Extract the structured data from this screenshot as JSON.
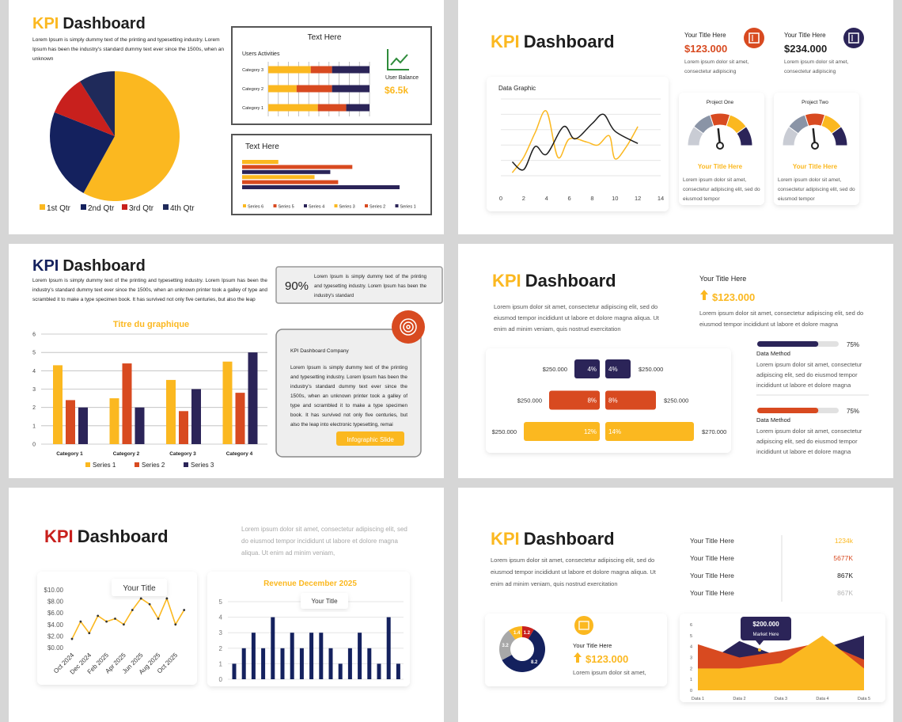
{
  "slides": [
    {
      "title_accent": "KPI",
      "title_rest": "Dashboard",
      "title_color": "#fbb820",
      "description": "Lorem Ipsum is simply dummy text of the printing and typesetting industry. Lorem Ipsum has been the industry's standard dummy text ever since the 1500s, when an unknown",
      "pie": {
        "type": "pie",
        "categories": [
          "1st Qtr",
          "2nd Qtr",
          "3rd Qtr",
          "4th Qtr"
        ],
        "values": [
          58,
          23,
          10,
          9
        ],
        "colors": [
          "#fbb820",
          "#14215e",
          "#c8201d",
          "#1f2a5a"
        ]
      },
      "activities": {
        "type": "bar",
        "orientation": "horizontal",
        "stacked": true,
        "title": "Text Here",
        "subtitle": "Users Activities",
        "categories": [
          "Category 3",
          "Category 2",
          "Category 1"
        ],
        "series": [
          {
            "color": "#fbb820",
            "values": [
              42,
              28,
              49
            ]
          },
          {
            "color": "#d84a20",
            "values": [
              21,
              35,
              28
            ]
          },
          {
            "color": "#2b2458",
            "values": [
              37,
              37,
              23
            ]
          }
        ]
      },
      "balance": {
        "label": "User Balance",
        "value": "$6.5k"
      },
      "series_bars": {
        "type": "bar",
        "orientation": "horizontal",
        "title": "Text Here",
        "series": [
          {
            "name": "Series 6",
            "color": "#fbb820",
            "value": 23
          },
          {
            "name": "Series 5",
            "color": "#d84a20",
            "value": 70
          },
          {
            "name": "Series 4",
            "color": "#2b2458",
            "value": 56
          },
          {
            "name": "Series 3",
            "color": "#fbb820",
            "value": 46
          },
          {
            "name": "Series 2",
            "color": "#d84a20",
            "value": 61
          },
          {
            "name": "Series 1",
            "color": "#2b2458",
            "value": 100
          }
        ]
      }
    },
    {
      "title_accent": "KPI",
      "title_rest": "Dashboard",
      "title_color": "#fbb820",
      "cards": [
        {
          "title": "Your Title Here",
          "value": "$123.000",
          "color": "#d84a20",
          "icon_color": "#d84a20",
          "description": "Lorem ipsum dolor sit amet, consectetur adipiscing"
        },
        {
          "title": "Your Title Here",
          "value": "$234.000",
          "color": "#1e1e1e",
          "icon_color": "#2b2458",
          "description": "Lorem ipsum dolor sit amet, consectetur adipiscing"
        }
      ],
      "line_chart": {
        "type": "line",
        "title": "Data Graphic",
        "xlim": [
          0,
          14
        ],
        "xticks": [
          0,
          2,
          4,
          6,
          8,
          10,
          12,
          14
        ],
        "ylim": [
          0,
          5
        ],
        "series": [
          {
            "color": "#fbb820",
            "x": [
              1,
              2,
              3,
              4,
              5,
              6,
              7.5,
              8.5,
              9.5,
              10,
              11,
              12
            ],
            "values": [
              0.2,
              1.2,
              2.8,
              4.2,
              1.2,
              2.4,
              2.2,
              2.0,
              2.6,
              1.1,
              1.9,
              3.2
            ]
          },
          {
            "color": "#1e1e1e",
            "x": [
              1,
              2,
              3,
              4,
              5.5,
              6.5,
              8,
              9,
              10,
              12
            ],
            "values": [
              0.9,
              0.4,
              1.9,
              1.4,
              3.2,
              2.4,
              3.4,
              4.0,
              2.9,
              2.1
            ]
          }
        ]
      },
      "gauges": [
        {
          "title": "Project One",
          "subtitle": "Your Title Here",
          "description": "Lorem ipsum dolor sit amet, consectetur adipiscing elit, sed do eiusmod tempor"
        },
        {
          "title": "Project Two",
          "subtitle": "Your Title Here",
          "description": "Lorem ipsum dolor sit amet, consectetur adipiscing elit, sed do eiusmod tempor"
        }
      ]
    },
    {
      "title_accent": "KPI",
      "title_rest": "Dashboard",
      "title_color": "#14215e",
      "description": "Lorem Ipsum is simply dummy text of the printing and typesetting industry. Lorem Ipsum has been the industry's standard dummy text ever since the 1500s, when an unknown printer took a galley of type and scrambled it to make a type specimen book. It has survived not only five centuries, but also the leap",
      "highlight": {
        "value": "90%",
        "text": "Lorem Ipsum is simply dummy text of the printing and typesetting industry. Lorem Ipsum has been the industry's standard"
      },
      "bar_chart": {
        "type": "bar",
        "title": "Titre du graphique",
        "categories": [
          "Category 1",
          "Category 2",
          "Category 3",
          "Category 4"
        ],
        "ylim": [
          0,
          6
        ],
        "yticks": [
          0,
          1,
          2,
          3,
          4,
          5,
          6
        ],
        "grid": true,
        "series": [
          {
            "name": "Series 1",
            "color": "#fbb820",
            "values": [
              4.3,
              2.5,
              3.5,
              4.5
            ]
          },
          {
            "name": "Series 2",
            "color": "#d84a20",
            "values": [
              2.4,
              4.4,
              1.8,
              2.8
            ]
          },
          {
            "name": "Series 3",
            "color": "#2b2458",
            "values": [
              2,
              2,
              3,
              5
            ]
          }
        ]
      },
      "company": {
        "title": "KPI Dashboard Company",
        "text": "Lorem Ipsum is simply dummy text of the printing and typesetting industry. Lorem Ipsum has been the industry's standard dummy text ever since the 1500s, when an unknown printer took a galley of type and scrambled it to make a type specimen book. It has survived not only five centuries, but also the leap into electronic typesetting, remai",
        "button": "Infographic Slide"
      }
    },
    {
      "title_accent": "KPI",
      "title_rest": "Dashboard",
      "title_color": "#fbb820",
      "description": "Lorem ipsum dolor sit amet, consectetur adipiscing elit, sed do eiusmod tempor incididunt ut labore et dolore magna aliqua. Ut enim ad minim veniam, quis nostrud exercitation",
      "kpi": {
        "title": "Your Title Here",
        "value": "$123.000",
        "description": "Lorem ipsum dolor sit amet, consectetur adipiscing elit, sed do eiusmod tempor incididunt ut labore et dolore magna"
      },
      "butterfly": {
        "type": "bar",
        "rows": [
          {
            "left_label": "$250.000",
            "left_value": 4,
            "left_value_label": "4%",
            "right_value": 4,
            "right_value_label": "4%",
            "right_label": "$250.000",
            "color": "#2b2458"
          },
          {
            "left_label": "$250.000",
            "left_value": 8,
            "left_value_label": "8%",
            "right_value": 8,
            "right_value_label": "8%",
            "right_label": "$250.000",
            "color": "#d84a20"
          },
          {
            "left_label": "$250.000",
            "left_value": 12,
            "left_value_label": "12%",
            "right_value": 14,
            "right_value_label": "14%",
            "right_label": "$270.000",
            "color": "#fbb820"
          }
        ]
      },
      "progress": [
        {
          "value": 75,
          "value_label": "75%",
          "color": "#2b2458",
          "label": "Data Method",
          "description": "Lorem ipsum dolor sit amet, consectetur adipiscing elit, sed do eiusmod tempor incididunt ut labore et dolore magna"
        },
        {
          "value": 75,
          "value_label": "75%",
          "color": "#d84a20",
          "label": "Data Method",
          "description": "Lorem ipsum dolor sit amet, consectetur adipiscing elit, sed do eiusmod tempor incididunt ut labore et dolore magna"
        }
      ]
    },
    {
      "title_accent": "KPI",
      "title_rest": "Dashboard",
      "title_color": "#c8201d",
      "description": "Lorem ipsum dolor sit amet, consectetur adipiscing elit, sed do eiusmod tempor incididunt ut labore et dolore magna aliqua. Ut enim ad minim veniam,",
      "line_chart": {
        "type": "line",
        "color": "#fbb820",
        "tooltip": "Your Title",
        "categories": [
          "Oct 2024",
          null,
          "Dec 2024",
          null,
          "Feb 2025",
          null,
          "Apr 2025",
          null,
          "Jun 2025",
          null,
          "Aug 2025",
          null,
          "Oct 2025",
          null
        ],
        "values": [
          1.5,
          4.5,
          2.5,
          5.5,
          4.5,
          5.0,
          4.0,
          6.5,
          8.5,
          7.5,
          5.0,
          8.5,
          4.0,
          6.5
        ],
        "ylim": [
          0,
          10
        ],
        "yticks": [
          {
            "value": 0,
            "label": "$0.00"
          },
          {
            "value": 2,
            "label": "$2.00"
          },
          {
            "value": 4,
            "label": "$4.00"
          },
          {
            "value": 6,
            "label": "$6.00"
          },
          {
            "value": 8,
            "label": "$8.00"
          },
          {
            "value": 10,
            "label": "$10.00"
          }
        ]
      },
      "bar_chart": {
        "type": "bar",
        "title": "Revenue December 2025",
        "tooltip": "Your Title",
        "color": "#14215e",
        "grid": true,
        "values": [
          1,
          2,
          3,
          2,
          4,
          2,
          3,
          2,
          3,
          3,
          2,
          1,
          2,
          3,
          2,
          1,
          4,
          1
        ],
        "ylim": [
          0,
          5
        ],
        "yticks": [
          0,
          1,
          2,
          3,
          4,
          5
        ]
      }
    },
    {
      "title_accent": "KPI",
      "title_rest": "Dashboard",
      "title_color": "#fbb820",
      "description": "Lorem ipsum dolor sit amet, consectetur adipiscing elit, sed do eiusmod tempor incididunt ut labore et dolore magna aliqua. Ut enim ad minim veniam, quis nostrud exercitation",
      "table": [
        {
          "label": "Your Title Here",
          "value": "1234k",
          "color": "#fbb820"
        },
        {
          "label": "Your Title Here",
          "value": "5677K",
          "color": "#d84a20"
        },
        {
          "label": "Your Title Here",
          "value": "867K",
          "color": "#1e1e1e"
        },
        {
          "label": "Your Title Here",
          "value": "867K",
          "color": "#b5b5b5"
        }
      ],
      "donut": {
        "type": "pie",
        "donut": true,
        "values": [
          1.4,
          1.2,
          8.2,
          3.2
        ],
        "colors": [
          "#fbb820",
          "#c8201d",
          "#14215e",
          "#a8a8a8"
        ]
      },
      "kpi": {
        "title": "Your Title Here",
        "value": "$123.000",
        "description": "Lorem ipsum dolor sit amet,"
      },
      "area_chart": {
        "type": "area",
        "categories": [
          "Data 1",
          "Data 2",
          "Data 3",
          "Data 4",
          "Data 5"
        ],
        "ylim": [
          0,
          6
        ],
        "yticks": [
          0,
          1,
          2,
          3,
          4,
          5,
          6
        ],
        "series": [
          {
            "color": "#2b2458",
            "values": [
              2,
              4.5,
              3,
              3.8,
              5
            ]
          },
          {
            "color": "#d84a20",
            "values": [
              4.2,
              3,
              3.6,
              4.4,
              2.8
            ]
          },
          {
            "color": "#fbb820",
            "values": [
              2,
              2,
              2.5,
              5,
              2
            ]
          }
        ],
        "tooltip": {
          "value": "$200.000",
          "label": "Market Here"
        }
      }
    }
  ]
}
